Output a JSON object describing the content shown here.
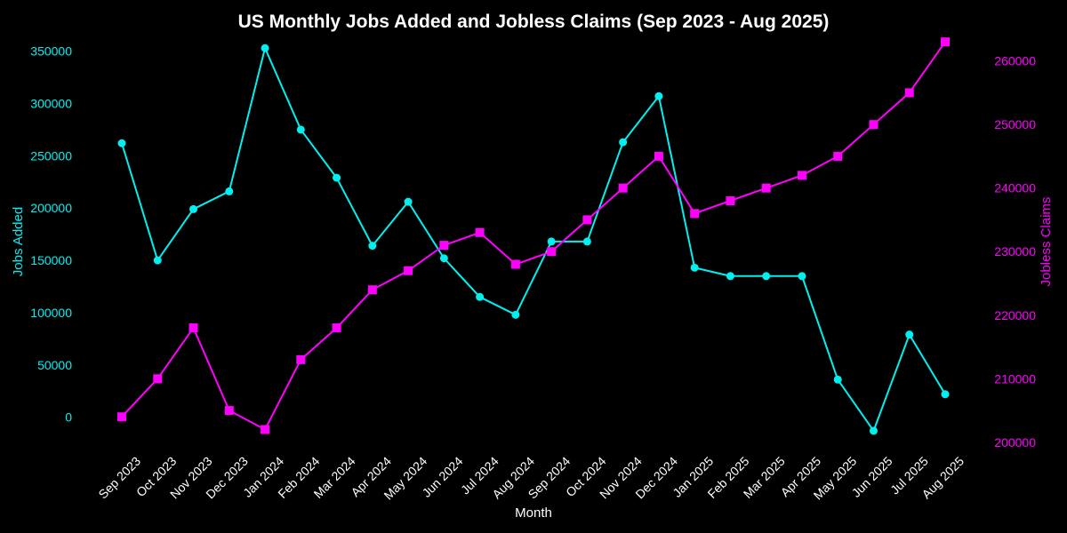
{
  "chart_data": {
    "type": "line",
    "title": "US Monthly Jobs Added and Jobless Claims (Sep 2023 - Aug 2025)",
    "xlabel": "Month",
    "ylabel_left": "Jobs Added",
    "ylabel_right": "Jobless Claims",
    "categories": [
      "Sep 2023",
      "Oct 2023",
      "Nov 2023",
      "Dec 2023",
      "Jan 2024",
      "Feb 2024",
      "Mar 2024",
      "Apr 2024",
      "May 2024",
      "Jun 2024",
      "Jul 2024",
      "Aug 2024",
      "Sep 2024",
      "Oct 2024",
      "Nov 2024",
      "Dec 2024",
      "Jan 2025",
      "Feb 2025",
      "Mar 2025",
      "Apr 2025",
      "May 2025",
      "Jun 2025",
      "Jul 2025",
      "Aug 2025"
    ],
    "ylim_left": [
      -30000,
      365000
    ],
    "ylim_right": [
      199000,
      264000
    ],
    "yticks_left": [
      0,
      50000,
      100000,
      150000,
      200000,
      250000,
      300000,
      350000
    ],
    "yticks_right": [
      200000,
      210000,
      220000,
      230000,
      240000,
      250000,
      260000
    ],
    "grid": false,
    "legend": "none",
    "series": [
      {
        "axis": "left",
        "color": "#00f0f0",
        "marker": "circle",
        "values": [
          262000,
          150000,
          199000,
          216000,
          353000,
          275000,
          229000,
          164000,
          206000,
          152000,
          115000,
          98000,
          168000,
          168000,
          263000,
          307000,
          143000,
          135000,
          135000,
          135000,
          36000,
          -13000,
          79000,
          22000
        ]
      },
      {
        "axis": "right",
        "color": "#ff00ff",
        "marker": "square",
        "values": [
          204000,
          210000,
          218000,
          205000,
          202000,
          213000,
          218000,
          224000,
          227000,
          231000,
          233000,
          228000,
          230000,
          235000,
          240000,
          245000,
          236000,
          238000,
          240000,
          242000,
          245000,
          250000,
          255000,
          263000
        ]
      }
    ]
  }
}
